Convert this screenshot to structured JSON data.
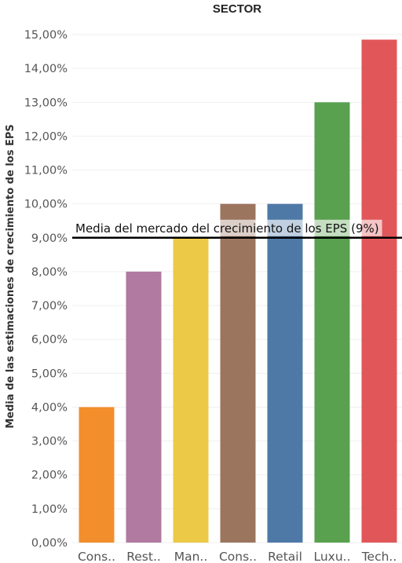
{
  "chart_data": {
    "type": "bar",
    "title": "SECTOR",
    "ylabel": "Media de las estimaciones de crecimiento de los EPS",
    "xlabel": "",
    "categories": [
      "Cons..",
      "Rest..",
      "Man..",
      "Cons..",
      "Retail",
      "Luxu..",
      "Tech.."
    ],
    "values": [
      4.0,
      8.0,
      9.0,
      10.0,
      10.0,
      13.0,
      14.85
    ],
    "colors": [
      "#f28e2b",
      "#b07aa1",
      "#edc948",
      "#9c755f",
      "#4e79a7",
      "#59a14f",
      "#e15759"
    ],
    "ylim": [
      0,
      15.5
    ],
    "yticks": [
      0,
      1,
      2,
      3,
      4,
      5,
      6,
      7,
      8,
      9,
      10,
      11,
      12,
      13,
      14,
      15
    ],
    "ytick_labels": [
      "0,00%",
      "1,00%",
      "2,00%",
      "3,00%",
      "4,00%",
      "5,00%",
      "6,00%",
      "7,00%",
      "8,00%",
      "9,00%",
      "10,00%",
      "11,00%",
      "12,00%",
      "13,00%",
      "14,00%",
      "15,00%"
    ],
    "reference_line": {
      "value": 9.0,
      "label": "Media del mercado del crecimiento de los EPS (9%)"
    },
    "grid": true,
    "legend": "none"
  }
}
